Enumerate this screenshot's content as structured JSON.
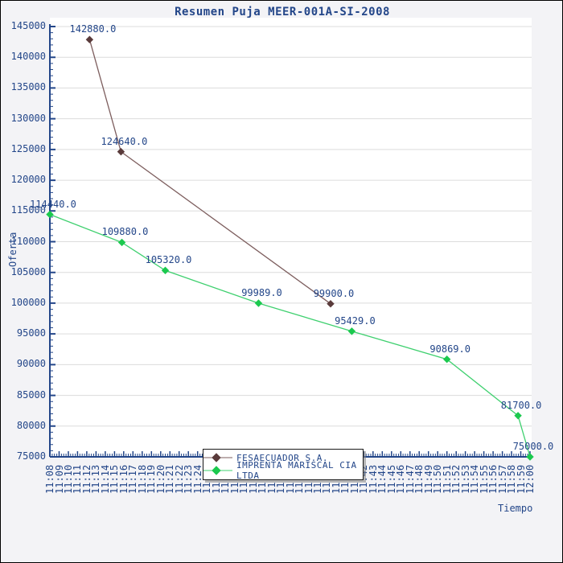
{
  "page": {
    "background_color": "#f3f3f6",
    "border_color": "#000000",
    "plot_background": "#ffffff",
    "grid_color": "#dcdcdc",
    "axis_color": "#234689",
    "text_color": "#234689"
  },
  "chart_data": {
    "type": "line",
    "title": "Resumen Puja MEER-001A-SI-2008",
    "xlabel": "Tiempo",
    "ylabel": "Oferta",
    "ylim": [
      75000,
      145000
    ],
    "y_tick_step": 5000,
    "y_minor_tick_step": 1000,
    "grid": "horizontal",
    "legend_position": "bottom-center",
    "y_ticks": [
      145000,
      140000,
      135000,
      130000,
      125000,
      120000,
      115000,
      110000,
      105000,
      100000,
      95000,
      90000,
      85000,
      80000,
      75000
    ],
    "x_ticks": [
      "11:08",
      "11:09",
      "11:10",
      "11:11",
      "11:12",
      "11:13",
      "11:14",
      "11:15",
      "11:16",
      "11:17",
      "11:18",
      "11:19",
      "11:20",
      "11:21",
      "11:22",
      "11:23",
      "11:24",
      "11:25",
      "11:26",
      "11:27",
      "11:28",
      "11:29",
      "11:30",
      "11:31",
      "11:32",
      "11:33",
      "11:34",
      "11:35",
      "11:36",
      "11:37",
      "11:38",
      "11:39",
      "11:40",
      "11:41",
      "11:42",
      "11:43",
      "11:44",
      "11:45",
      "11:46",
      "11:47",
      "11:48",
      "11:49",
      "11:50",
      "11:51",
      "11:52",
      "11:53",
      "11:54",
      "11:55",
      "11:56",
      "11:57",
      "11:58",
      "11:59",
      "12:00"
    ],
    "x_minor_ticks_per_interval": 3,
    "series": [
      {
        "name": "FESAECUADOR S.A.",
        "marker": "diamond",
        "line_color": "#7d5e5e",
        "marker_color": "#5a3b3b",
        "points": [
          {
            "time": "11:12",
            "minutes_from_start": 4.3,
            "value": 142880.0,
            "label": "142880.0"
          },
          {
            "time": "11:15",
            "minutes_from_start": 7.7,
            "value": 124640.0,
            "label": "124640.0"
          },
          {
            "time": "11:38",
            "minutes_from_start": 30.4,
            "value": 99900.0,
            "label": "99900.0"
          }
        ]
      },
      {
        "name": "IMPRENTA MARISCAL CIA LTDA",
        "marker": "diamond",
        "line_color": "#3fd06f",
        "marker_color": "#1bc94e",
        "points": [
          {
            "time": "11:08",
            "minutes_from_start": 0.0,
            "value": 114440.0,
            "label": "114440.0"
          },
          {
            "time": "11:16",
            "minutes_from_start": 7.8,
            "value": 109880.0,
            "label": "109880.0"
          },
          {
            "time": "11:20",
            "minutes_from_start": 12.5,
            "value": 105320.0,
            "label": "105320.0"
          },
          {
            "time": "11:31",
            "minutes_from_start": 22.6,
            "value": 99989.0,
            "label": "99989.0"
          },
          {
            "time": "11:41",
            "minutes_from_start": 32.7,
            "value": 95429.0,
            "label": "95429.0"
          },
          {
            "time": "11:51",
            "minutes_from_start": 43.0,
            "value": 90869.0,
            "label": "90869.0"
          },
          {
            "time": "11:59",
            "minutes_from_start": 50.7,
            "value": 81700.0,
            "label": "81700.0"
          },
          {
            "time": "12:00",
            "minutes_from_start": 52.0,
            "value": 75000.0,
            "label": "75000.0"
          }
        ]
      }
    ]
  }
}
